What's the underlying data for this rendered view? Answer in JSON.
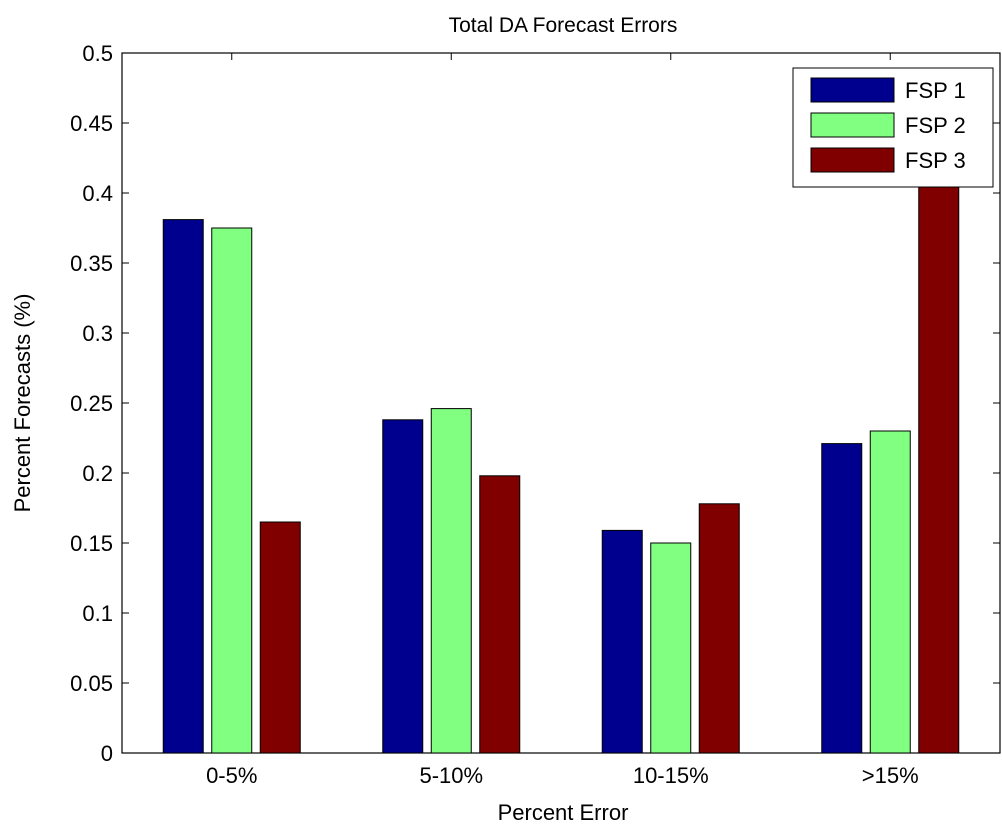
{
  "chart_data": {
    "type": "bar",
    "title": "Total DA Forecast Errors",
    "xlabel": "Percent Error",
    "ylabel": "Percent Forecasts (%)",
    "categories": [
      "0-5%",
      "5-10%",
      "10-15%",
      ">15%"
    ],
    "ylim": [
      0,
      0.5
    ],
    "yticks": [
      "0",
      "0.05",
      "0.1",
      "0.15",
      "0.2",
      "0.25",
      "0.3",
      "0.35",
      "0.4",
      "0.45",
      "0.5"
    ],
    "grid": false,
    "legend_position": "top-right",
    "series": [
      {
        "name": "FSP 1",
        "color": "#00008f",
        "values": [
          0.381,
          0.238,
          0.159,
          0.221
        ]
      },
      {
        "name": "FSP 2",
        "color": "#80ff80",
        "values": [
          0.375,
          0.246,
          0.15,
          0.23
        ]
      },
      {
        "name": "FSP 3",
        "color": "#800000",
        "values": [
          0.165,
          0.198,
          0.178,
          0.405
        ]
      }
    ]
  }
}
